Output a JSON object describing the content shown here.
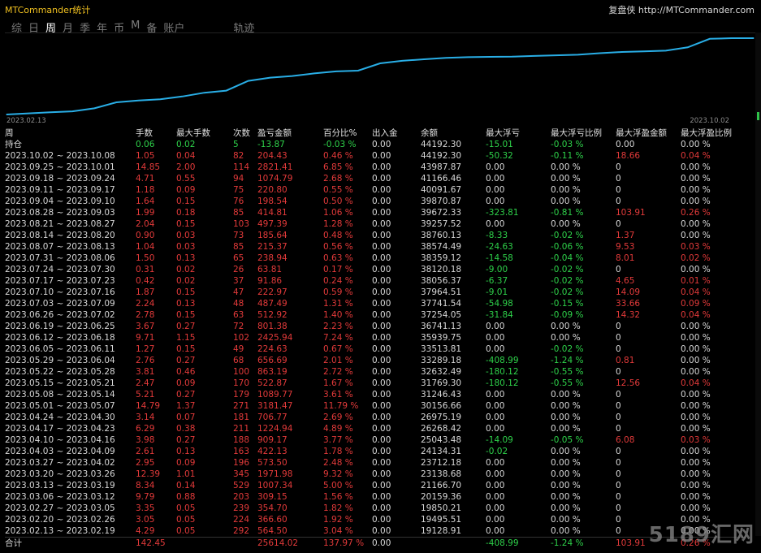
{
  "app": {
    "title": "MTCommander统计",
    "brand_name": "复盘侠",
    "brand_url": "http://MTCommander.com"
  },
  "tabs": [
    {
      "label": "综"
    },
    {
      "label": "日"
    },
    {
      "label": "周",
      "active": true
    },
    {
      "label": "月"
    },
    {
      "label": "季"
    },
    {
      "label": "年"
    },
    {
      "label": "币"
    },
    {
      "label": "M"
    },
    {
      "label": "备"
    },
    {
      "label": "账户"
    },
    {
      "label": "轨迹"
    }
  ],
  "chart_data": {
    "type": "line",
    "x_start_label": "2023.02.13",
    "x_end_label": "2023.10.02",
    "color": "#29aee6",
    "values": [
      19128.91,
      19495.51,
      19850.21,
      20159.36,
      21166.7,
      23138.68,
      23712.18,
      24134.31,
      25043.48,
      26268.42,
      26975.19,
      30156.66,
      31246.43,
      31769.3,
      32632.49,
      33289.18,
      33513.81,
      35939.75,
      36741.13,
      37254.05,
      37741.54,
      37964.51,
      38056.37,
      38120.18,
      38359.12,
      38574.49,
      38760.13,
      39257.52,
      39672.33,
      39870.87,
      40091.67,
      41166.46,
      43987.87,
      44192.3,
      44192.3
    ]
  },
  "table": {
    "headers": [
      "周",
      "手数",
      "最大手数",
      "次数",
      "盈亏金额",
      "百分比%",
      "出入金",
      "余额",
      "最大浮亏",
      "最大浮亏比例",
      "最大浮盈金额",
      "最大浮盈比例"
    ],
    "holding": [
      "持仓",
      "0.06",
      "0.02",
      "5",
      "-13.87",
      "-0.03 %",
      "0.00",
      "44192.30",
      "-15.01",
      "-0.03 %",
      "0.00",
      "0.00 %"
    ],
    "rows": [
      [
        "2023.10.02 ~ 2023.10.08",
        "1.05",
        "0.04",
        "82",
        "204.43",
        "0.46 %",
        "0.00",
        "44192.30",
        "-50.32",
        "-0.11 %",
        "18.66",
        "0.04 %"
      ],
      [
        "2023.09.25 ~ 2023.10.01",
        "14.85",
        "2.00",
        "114",
        "2821.41",
        "6.85 %",
        "0.00",
        "43987.87",
        "0.00",
        "0.00 %",
        "0",
        "0.00 %"
      ],
      [
        "2023.09.18 ~ 2023.09.24",
        "4.71",
        "0.55",
        "94",
        "1074.79",
        "2.68 %",
        "0.00",
        "41166.46",
        "0.00",
        "0.00 %",
        "0",
        "0.00 %"
      ],
      [
        "2023.09.11 ~ 2023.09.17",
        "1.18",
        "0.09",
        "75",
        "220.80",
        "0.55 %",
        "0.00",
        "40091.67",
        "0.00",
        "0.00 %",
        "0",
        "0.00 %"
      ],
      [
        "2023.09.04 ~ 2023.09.10",
        "1.64",
        "0.15",
        "76",
        "198.54",
        "0.50 %",
        "0.00",
        "39870.87",
        "0.00",
        "0.00 %",
        "0",
        "0.00 %"
      ],
      [
        "2023.08.28 ~ 2023.09.03",
        "1.99",
        "0.18",
        "85",
        "414.81",
        "1.06 %",
        "0.00",
        "39672.33",
        "-323.81",
        "-0.81 %",
        "103.91",
        "0.26 %"
      ],
      [
        "2023.08.21 ~ 2023.08.27",
        "2.04",
        "0.15",
        "103",
        "497.39",
        "1.28 %",
        "0.00",
        "39257.52",
        "0.00",
        "0.00 %",
        "0",
        "0.00 %"
      ],
      [
        "2023.08.14 ~ 2023.08.20",
        "0.90",
        "0.03",
        "73",
        "185.64",
        "0.48 %",
        "0.00",
        "38760.13",
        "-8.33",
        "-0.02 %",
        "1.37",
        "0.00 %"
      ],
      [
        "2023.08.07 ~ 2023.08.13",
        "1.04",
        "0.03",
        "85",
        "215.37",
        "0.56 %",
        "0.00",
        "38574.49",
        "-24.63",
        "-0.06 %",
        "9.53",
        "0.03 %"
      ],
      [
        "2023.07.31 ~ 2023.08.06",
        "1.50",
        "0.13",
        "65",
        "238.94",
        "0.63 %",
        "0.00",
        "38359.12",
        "-14.58",
        "-0.04 %",
        "8.01",
        "0.02 %"
      ],
      [
        "2023.07.24 ~ 2023.07.30",
        "0.31",
        "0.02",
        "26",
        "63.81",
        "0.17 %",
        "0.00",
        "38120.18",
        "-9.00",
        "-0.02 %",
        "0",
        "0.00 %"
      ],
      [
        "2023.07.17 ~ 2023.07.23",
        "0.42",
        "0.02",
        "37",
        "91.86",
        "0.24 %",
        "0.00",
        "38056.37",
        "-6.37",
        "-0.02 %",
        "4.65",
        "0.01 %"
      ],
      [
        "2023.07.10 ~ 2023.07.16",
        "1.87",
        "0.15",
        "47",
        "222.97",
        "0.59 %",
        "0.00",
        "37964.51",
        "-9.01",
        "-0.02 %",
        "14.09",
        "0.04 %"
      ],
      [
        "2023.07.03 ~ 2023.07.09",
        "2.24",
        "0.13",
        "48",
        "487.49",
        "1.31 %",
        "0.00",
        "37741.54",
        "-54.98",
        "-0.15 %",
        "33.66",
        "0.09 %"
      ],
      [
        "2023.06.26 ~ 2023.07.02",
        "2.78",
        "0.15",
        "63",
        "512.92",
        "1.40 %",
        "0.00",
        "37254.05",
        "-31.84",
        "-0.09 %",
        "14.32",
        "0.04 %"
      ],
      [
        "2023.06.19 ~ 2023.06.25",
        "3.67",
        "0.27",
        "72",
        "801.38",
        "2.23 %",
        "0.00",
        "36741.13",
        "0.00",
        "0.00 %",
        "0",
        "0.00 %"
      ],
      [
        "2023.06.12 ~ 2023.06.18",
        "9.71",
        "1.15",
        "102",
        "2425.94",
        "7.24 %",
        "0.00",
        "35939.75",
        "0.00",
        "0.00 %",
        "0",
        "0.00 %"
      ],
      [
        "2023.06.05 ~ 2023.06.11",
        "1.27",
        "0.15",
        "49",
        "224.63",
        "0.67 %",
        "0.00",
        "33513.81",
        "0.00",
        "-0.02 %",
        "0",
        "0.00 %"
      ],
      [
        "2023.05.29 ~ 2023.06.04",
        "2.76",
        "0.27",
        "68",
        "656.69",
        "2.01 %",
        "0.00",
        "33289.18",
        "-408.99",
        "-1.24 %",
        "0.81",
        "0.00 %"
      ],
      [
        "2023.05.22 ~ 2023.05.28",
        "3.81",
        "0.46",
        "100",
        "863.19",
        "2.72 %",
        "0.00",
        "32632.49",
        "-180.12",
        "-0.55 %",
        "0",
        "0.00 %"
      ],
      [
        "2023.05.15 ~ 2023.05.21",
        "2.47",
        "0.09",
        "170",
        "522.87",
        "1.67 %",
        "0.00",
        "31769.30",
        "-180.12",
        "-0.55 %",
        "12.56",
        "0.04 %"
      ],
      [
        "2023.05.08 ~ 2023.05.14",
        "5.21",
        "0.27",
        "179",
        "1089.77",
        "3.61 %",
        "0.00",
        "31246.43",
        "0.00",
        "0.00 %",
        "0",
        "0.00 %"
      ],
      [
        "2023.05.01 ~ 2023.05.07",
        "14.79",
        "1.37",
        "271",
        "3181.47",
        "11.79 %",
        "0.00",
        "30156.66",
        "0.00",
        "0.00 %",
        "0",
        "0.00 %"
      ],
      [
        "2023.04.24 ~ 2023.04.30",
        "3.14",
        "0.07",
        "181",
        "706.77",
        "2.69 %",
        "0.00",
        "26975.19",
        "0.00",
        "0.00 %",
        "0",
        "0.00 %"
      ],
      [
        "2023.04.17 ~ 2023.04.23",
        "6.29",
        "0.38",
        "211",
        "1224.94",
        "4.89 %",
        "0.00",
        "26268.42",
        "0.00",
        "0.00 %",
        "0",
        "0.00 %"
      ],
      [
        "2023.04.10 ~ 2023.04.16",
        "3.98",
        "0.27",
        "188",
        "909.17",
        "3.77 %",
        "0.00",
        "25043.48",
        "-14.09",
        "-0.05 %",
        "6.08",
        "0.03 %"
      ],
      [
        "2023.04.03 ~ 2023.04.09",
        "2.61",
        "0.13",
        "163",
        "422.13",
        "1.78 %",
        "0.00",
        "24134.31",
        "-0.02",
        "0.00 %",
        "0",
        "0.00 %"
      ],
      [
        "2023.03.27 ~ 2023.04.02",
        "2.95",
        "0.09",
        "196",
        "573.50",
        "2.48 %",
        "0.00",
        "23712.18",
        "0.00",
        "0.00 %",
        "0",
        "0.00 %"
      ],
      [
        "2023.03.20 ~ 2023.03.26",
        "12.39",
        "1.01",
        "345",
        "1971.98",
        "9.32 %",
        "0.00",
        "23138.68",
        "0.00",
        "0.00 %",
        "0",
        "0.00 %"
      ],
      [
        "2023.03.13 ~ 2023.03.19",
        "8.34",
        "0.14",
        "529",
        "1007.34",
        "5.00 %",
        "0.00",
        "21166.70",
        "0.00",
        "0.00 %",
        "0",
        "0.00 %"
      ],
      [
        "2023.03.06 ~ 2023.03.12",
        "9.79",
        "0.88",
        "203",
        "309.15",
        "1.56 %",
        "0.00",
        "20159.36",
        "0.00",
        "0.00 %",
        "0",
        "0.00 %"
      ],
      [
        "2023.02.27 ~ 2023.03.05",
        "3.35",
        "0.05",
        "239",
        "354.70",
        "1.82 %",
        "0.00",
        "19850.21",
        "0.00",
        "0.00 %",
        "0",
        "0.00 %"
      ],
      [
        "2023.02.20 ~ 2023.02.26",
        "3.05",
        "0.05",
        "224",
        "366.60",
        "1.92 %",
        "0.00",
        "19495.51",
        "0.00",
        "0.00 %",
        "0",
        "0.00 %"
      ],
      [
        "2023.02.13 ~ 2023.02.19",
        "4.29",
        "0.05",
        "292",
        "564.50",
        "3.04 %",
        "0.00",
        "19128.91",
        "0.00",
        "0.00 %",
        "0",
        "0.00 %"
      ]
    ],
    "total": [
      "合计",
      "142.45",
      "",
      "",
      "25614.02",
      "137.97 %",
      "0.00",
      "",
      "-408.99",
      "-1.24 %",
      "103.91",
      "0.26 %"
    ]
  },
  "watermark": "5189汇网"
}
